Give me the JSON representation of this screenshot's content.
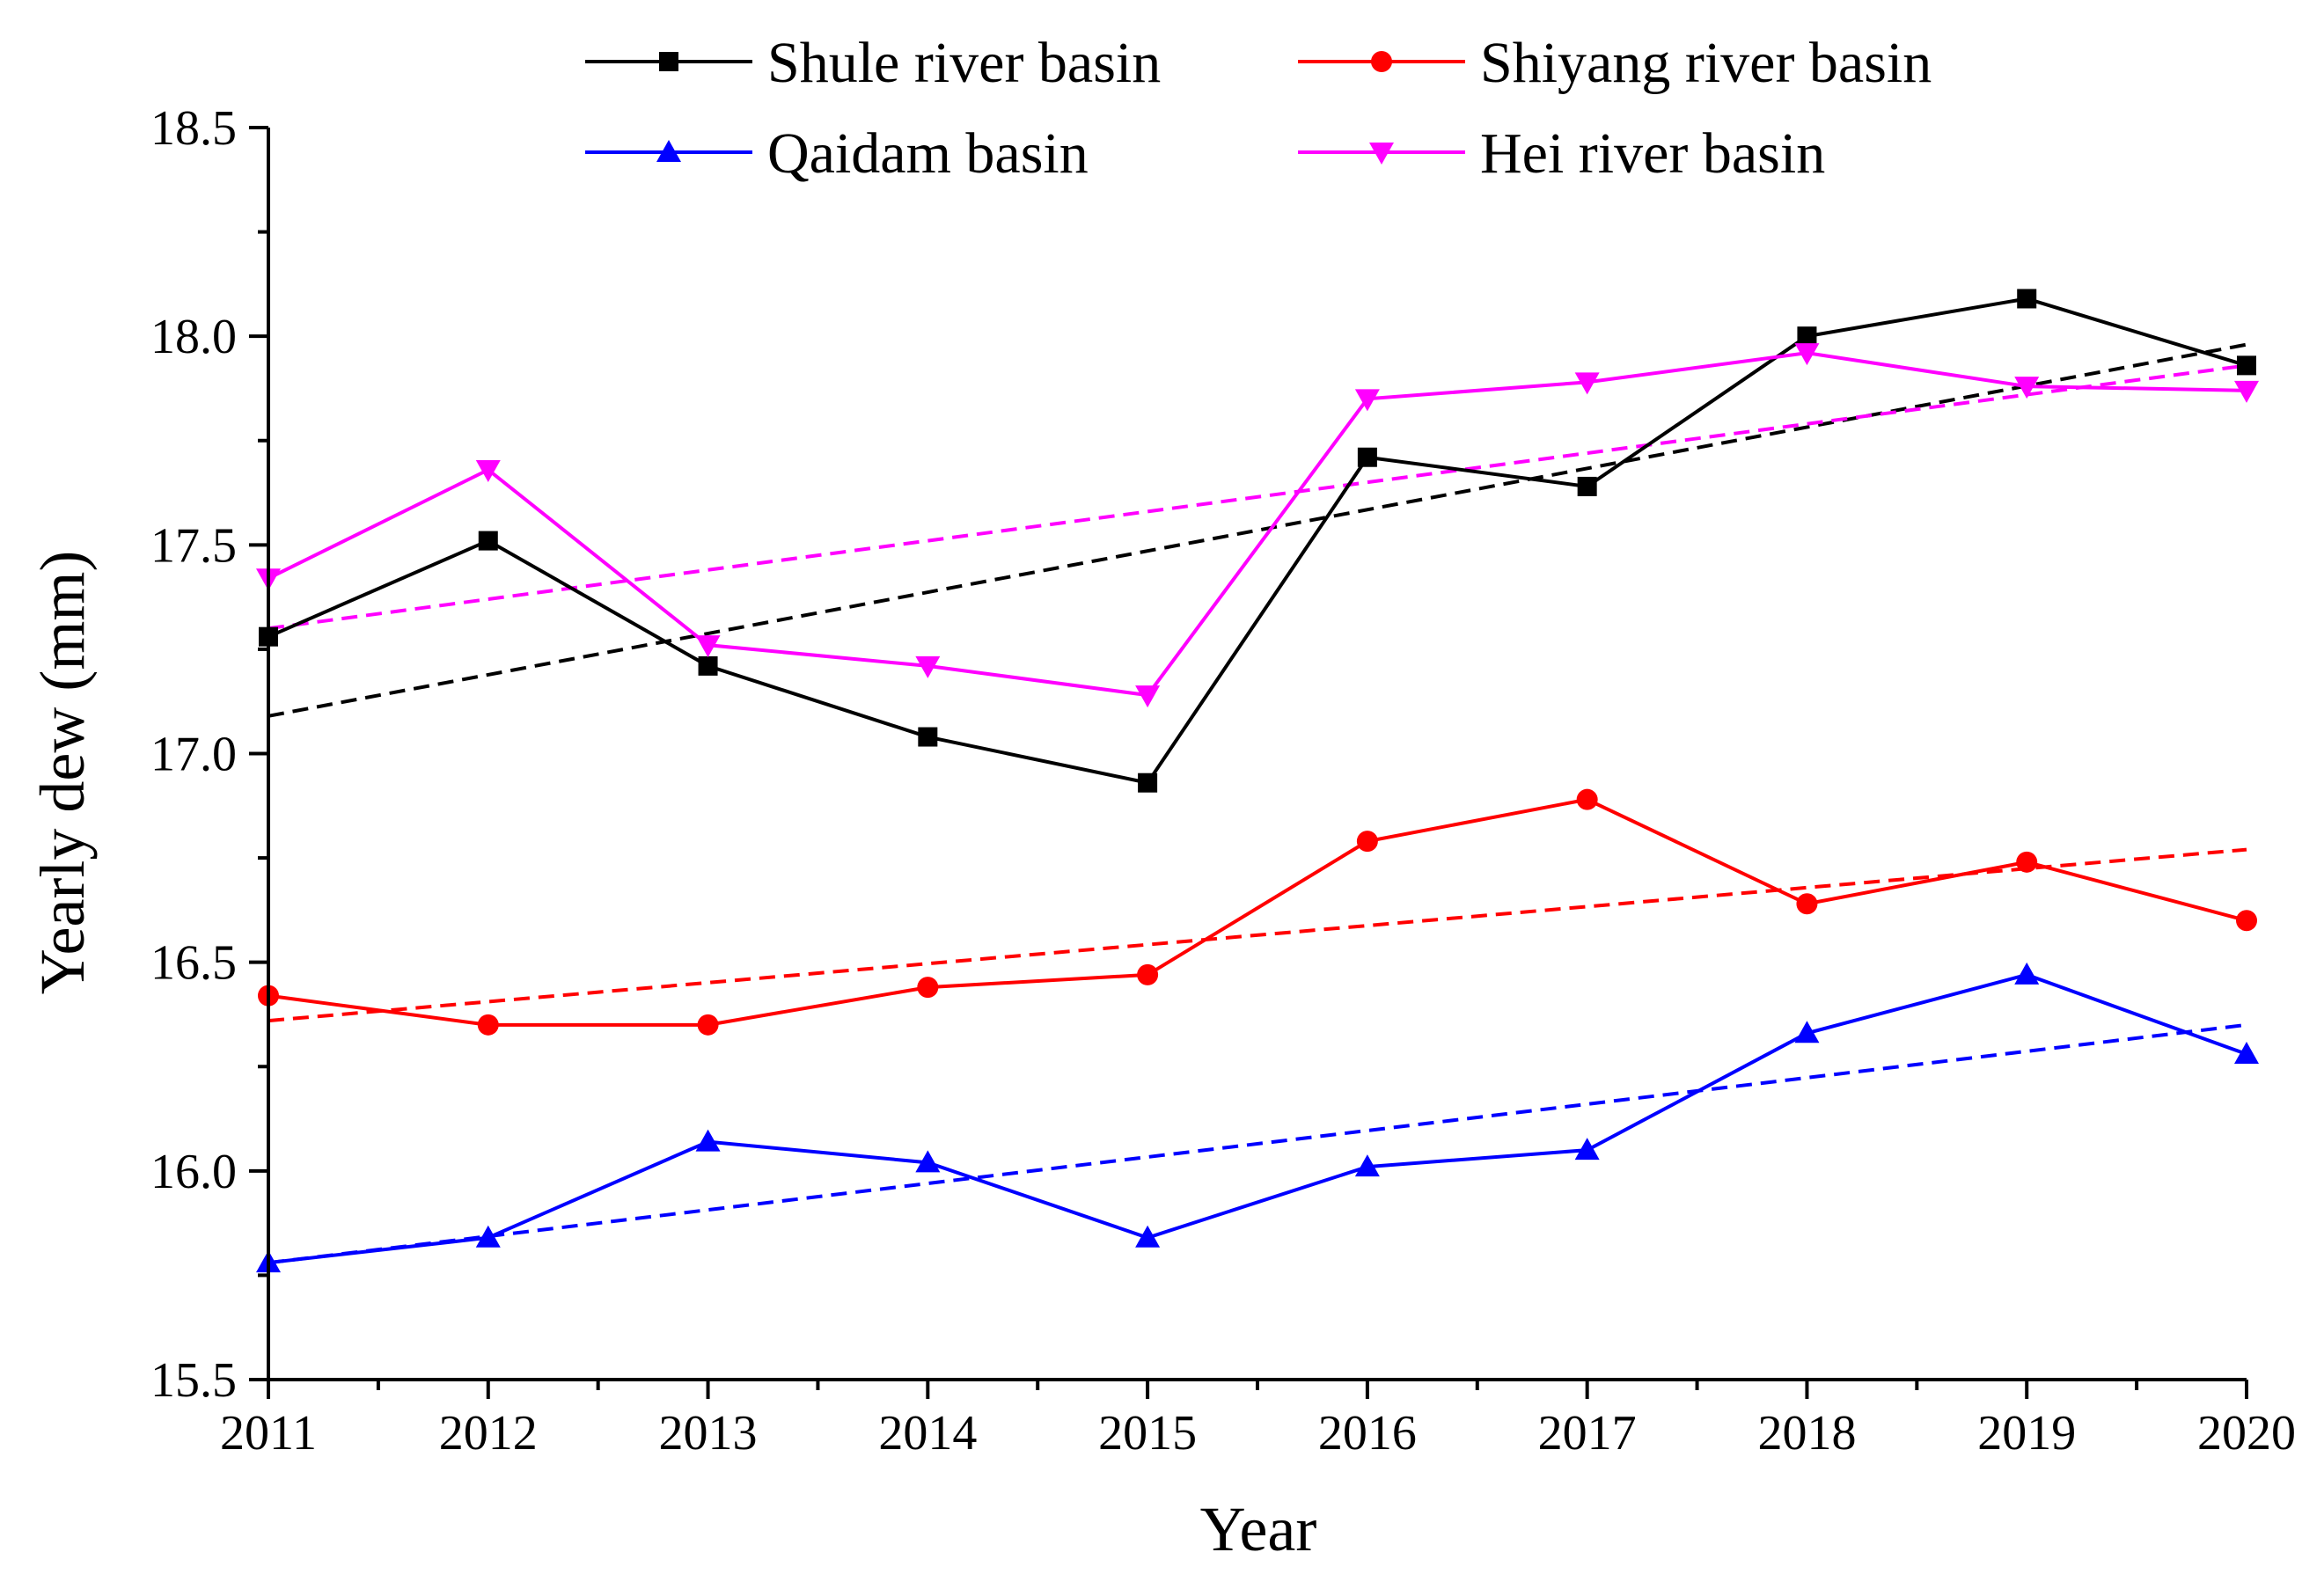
{
  "chart_data": {
    "type": "line",
    "xlabel": "Year",
    "ylabel": "Yearly dew (mm)",
    "x": [
      2011,
      2012,
      2013,
      2014,
      2015,
      2016,
      2017,
      2018,
      2019,
      2020
    ],
    "x_tick_labels": [
      "2011",
      "2012",
      "2013",
      "2014",
      "2015",
      "2016",
      "2017",
      "2018",
      "2019",
      "2020"
    ],
    "ylim": [
      15.5,
      18.5
    ],
    "y_ticks": [
      15.5,
      16.0,
      16.5,
      17.0,
      17.5,
      18.0,
      18.5
    ],
    "y_tick_labels": [
      "15.5",
      "16.0",
      "16.5",
      "17.0",
      "17.5",
      "18.0",
      "18.5"
    ],
    "legend_position": "top",
    "grid": false,
    "series": [
      {
        "name": "Shule river basin",
        "color": "#000000",
        "marker": "square",
        "values": [
          17.28,
          17.51,
          17.21,
          17.04,
          16.93,
          17.71,
          17.64,
          18.0,
          18.09,
          17.93
        ],
        "trend": [
          17.09,
          17.98
        ]
      },
      {
        "name": "Shiyang river basin",
        "color": "#ff0000",
        "marker": "circle",
        "values": [
          16.42,
          16.35,
          16.35,
          16.44,
          16.47,
          16.79,
          16.89,
          16.64,
          16.74,
          16.6
        ],
        "trend": [
          16.36,
          16.77
        ]
      },
      {
        "name": "Qaidam basin",
        "color": "#0000ff",
        "marker": "triangle-up",
        "values": [
          15.78,
          15.84,
          16.07,
          16.02,
          15.84,
          16.01,
          16.05,
          16.33,
          16.47,
          16.28
        ],
        "trend": [
          15.78,
          16.35
        ]
      },
      {
        "name": "Hei river basin",
        "color": "#ff00ff",
        "marker": "triangle-down",
        "values": [
          17.42,
          17.68,
          17.26,
          17.21,
          17.14,
          17.85,
          17.89,
          17.96,
          17.88,
          17.87
        ],
        "trend": [
          17.3,
          17.93
        ]
      }
    ]
  }
}
